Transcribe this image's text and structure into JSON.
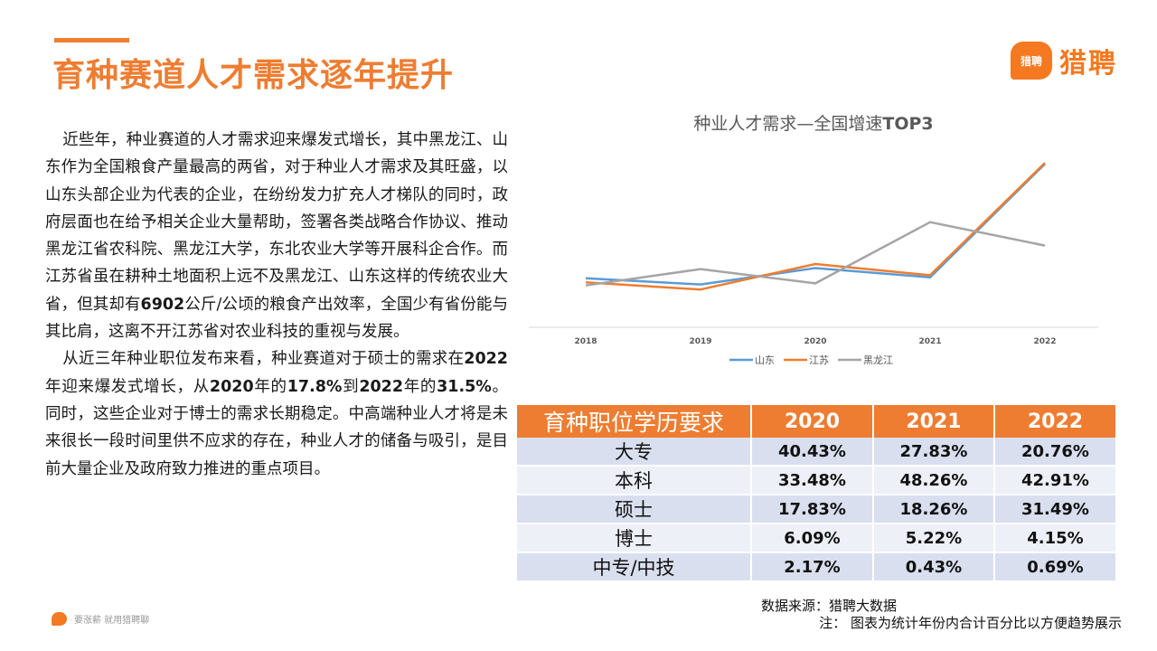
{
  "header": {
    "title": "育种赛道人才需求逐年提升",
    "logo_mark": "猎聘",
    "logo_text": "猎聘"
  },
  "body": {
    "p1_parts": [
      {
        "text": "近些年，种业赛道的人才需求迎来爆发式增长，其中黑龙江、山东作为全国粮食产量最高的两省，对于种业人才需求及其旺盛，以山东头部企业为代表的企业，在纷纷发力扩充人才梯队的同时，政府层面也在给予相关企业大量帮助，签署各类战略合作协议、推动黑龙江省农科院、黑龙江大学，东北农业大学等开展科企合作。而江苏省虽在耕种土地面积上远不及黑龙江、山东这样的传统农业大省，但其却有",
        "bold": false
      },
      {
        "text": "6902",
        "bold": true
      },
      {
        "text": "公斤/公顷的粮食产出效率，全国少有省份能与其比肩，这离不开江苏省对农业科技的重视与发展。",
        "bold": false
      }
    ],
    "p2_parts": [
      {
        "text": "从近三年种业职位发布来看，种业赛道对于硕士的需求在",
        "bold": false
      },
      {
        "text": "2022",
        "bold": true
      },
      {
        "text": "年迎来爆发式增长，从",
        "bold": false
      },
      {
        "text": "2020",
        "bold": true
      },
      {
        "text": "年的",
        "bold": false
      },
      {
        "text": "17.8%",
        "bold": true
      },
      {
        "text": "到",
        "bold": false
      },
      {
        "text": "2022",
        "bold": true
      },
      {
        "text": "年的",
        "bold": false
      },
      {
        "text": "31.5%",
        "bold": true
      },
      {
        "text": "。同时，这些企业对于博士的需求长期稳定。中高端种业人才将是未来很长一段时间里供不应求的存在，种业人才的储备与吸引，是目前大量企业及政府致力推进的重点项目。",
        "bold": false
      }
    ]
  },
  "chart_data": {
    "type": "line",
    "title_plain": "种业人才需求—全国增速",
    "title_bold": "TOP3",
    "x": [
      "2018",
      "2019",
      "2020",
      "2021",
      "2022"
    ],
    "series": [
      {
        "name": "山东",
        "color": "#5b9bd5",
        "values": [
          0.48,
          0.42,
          0.58,
          0.49,
          1.6
        ]
      },
      {
        "name": "江苏",
        "color": "#ed7d31",
        "values": [
          0.44,
          0.37,
          0.62,
          0.51,
          1.61
        ]
      },
      {
        "name": "黑龙江",
        "color": "#a5a5a5",
        "values": [
          0.41,
          0.57,
          0.43,
          1.03,
          0.8
        ]
      }
    ],
    "ylim": [
      0.0,
      1.7
    ],
    "grid": false,
    "legend_position": "bottom"
  },
  "table": {
    "header": [
      "育种职位学历要求",
      "2020",
      "2021",
      "2022"
    ],
    "rows": [
      [
        "大专",
        "40.43%",
        "27.83%",
        "20.76%"
      ],
      [
        "本科",
        "33.48%",
        "48.26%",
        "42.91%"
      ],
      [
        "硕士",
        "17.83%",
        "18.26%",
        "31.49%"
      ],
      [
        "博士",
        "6.09%",
        "5.22%",
        "4.15%"
      ],
      [
        "中专/中技",
        "2.17%",
        "0.43%",
        "0.69%"
      ]
    ]
  },
  "source": "数据来源：猎聘大数据",
  "note": "注： 图表为统计年份内合计百分比以方便趋势展示",
  "footer": {
    "text": "要涨薪 就用猎聘聊"
  },
  "colors": {
    "accent": "#ee7d31",
    "brand": "#f47920"
  }
}
